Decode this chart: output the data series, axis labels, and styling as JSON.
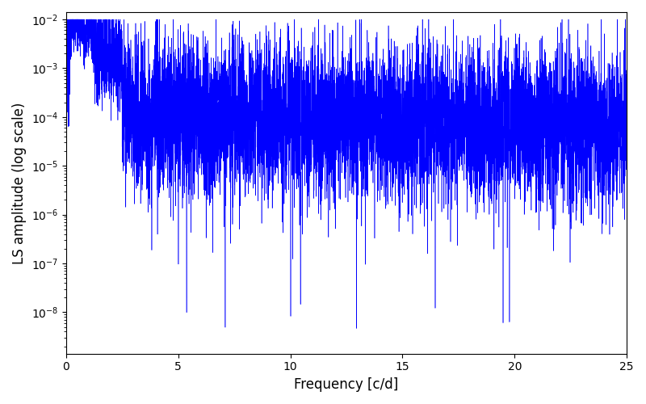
{
  "title": "",
  "xlabel": "Frequency [c/d]",
  "ylabel": "LS amplitude (log scale)",
  "line_color": "blue",
  "xlim": [
    0,
    25
  ],
  "ylim_log": [
    -8.85,
    -1.85
  ],
  "yticks": [
    1e-08,
    1e-07,
    1e-06,
    1e-05,
    0.0001,
    0.001,
    0.01
  ],
  "xticks": [
    0,
    5,
    10,
    15,
    20,
    25
  ],
  "figsize": [
    8.0,
    5.0
  ],
  "dpi": 100,
  "background_color": "#ffffff",
  "seed": 12345,
  "n_points": 8000
}
